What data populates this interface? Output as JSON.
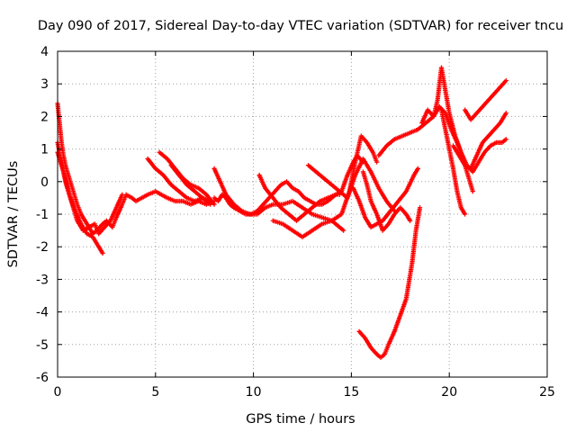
{
  "chart_data": {
    "type": "scatter",
    "title": "Day 090 of 2017, Sidereal Day-to-day VTEC variation (SDTVAR) for receiver tncu",
    "xlabel": "GPS time / hours",
    "ylabel": "SDTVAR / TECUs",
    "xlim": [
      0,
      25
    ],
    "ylim": [
      -6,
      4
    ],
    "xticks": [
      "0",
      "5",
      "10",
      "15",
      "20",
      "25"
    ],
    "yticks": [
      "-6",
      "-5",
      "-4",
      "-3",
      "-2",
      "-1",
      "0",
      "1",
      "2",
      "3",
      "4"
    ],
    "grid": true,
    "legend": "none",
    "marker": "+",
    "color": "#ff0000",
    "series": [
      {
        "x": [
          0,
          0.1,
          0.2,
          0.3,
          0.4,
          0.6,
          0.8,
          1.0,
          1.2,
          1.4,
          1.6,
          1.8,
          2.0,
          2.3,
          2.5,
          2.8,
          3.0,
          3.3,
          3.5,
          3.8,
          4.0,
          4.3,
          4.6,
          5.0,
          5.3,
          5.6,
          6.0,
          6.4,
          6.8,
          7.2,
          7.6,
          8.0
        ],
        "y": [
          2.4,
          1.8,
          1.2,
          0.8,
          0.5,
          0.1,
          -0.3,
          -0.7,
          -1.0,
          -1.2,
          -1.4,
          -1.6,
          -1.5,
          -1.3,
          -1.2,
          -1.4,
          -1.1,
          -0.7,
          -0.4,
          -0.5,
          -0.6,
          -0.5,
          -0.4,
          -0.3,
          -0.4,
          -0.5,
          -0.6,
          -0.6,
          -0.7,
          -0.6,
          -0.7,
          -0.6
        ]
      },
      {
        "x": [
          0,
          0.2,
          0.4,
          0.6,
          0.8,
          1.0,
          1.3,
          1.6,
          1.9,
          2.1,
          2.4,
          2.7,
          3.0,
          3.3
        ],
        "y": [
          1.2,
          0.6,
          0.0,
          -0.4,
          -0.8,
          -1.2,
          -1.5,
          -1.4,
          -1.3,
          -1.6,
          -1.4,
          -1.2,
          -0.8,
          -0.4
        ]
      },
      {
        "x": [
          0,
          0.3,
          0.6,
          0.9,
          1.2,
          1.5,
          1.8,
          2.1,
          2.3
        ],
        "y": [
          0.9,
          0.3,
          -0.4,
          -0.9,
          -1.3,
          -1.6,
          -1.7,
          -2.0,
          -2.2
        ]
      },
      {
        "x": [
          4.6,
          5.0,
          5.4,
          5.8,
          6.2,
          6.6,
          7.0,
          7.4,
          7.8
        ],
        "y": [
          0.7,
          0.4,
          0.2,
          -0.1,
          -0.3,
          -0.5,
          -0.6,
          -0.5,
          -0.7
        ]
      },
      {
        "x": [
          5.2,
          5.6,
          6.0,
          6.4,
          6.8,
          7.2,
          7.6,
          8.0
        ],
        "y": [
          0.9,
          0.7,
          0.4,
          0.1,
          -0.1,
          -0.2,
          -0.4,
          -0.7
        ]
      },
      {
        "x": [
          5.8,
          6.2,
          6.6,
          7.0,
          7.4,
          7.8
        ],
        "y": [
          0.5,
          0.2,
          -0.1,
          -0.3,
          -0.5,
          -0.6
        ]
      },
      {
        "x": [
          8.0,
          8.2,
          8.4,
          8.6,
          8.8,
          9.0,
          9.3,
          9.6,
          9.9,
          10.2,
          10.5,
          10.8,
          11.1,
          11.4,
          11.7,
          12.0,
          12.3,
          12.6,
          12.9,
          13.2,
          13.5,
          13.8,
          14.0,
          14.2,
          14.4
        ],
        "y": [
          -0.5,
          -0.6,
          -0.4,
          -0.5,
          -0.7,
          -0.8,
          -0.9,
          -1.0,
          -1.0,
          -0.9,
          -0.7,
          -0.5,
          -0.3,
          -0.1,
          0.0,
          -0.2,
          -0.3,
          -0.5,
          -0.6,
          -0.7,
          -0.7,
          -0.6,
          -0.5,
          -0.4,
          -0.4
        ]
      },
      {
        "x": [
          8.0,
          8.3,
          8.6,
          9.0,
          9.4,
          9.8,
          10.2,
          10.6,
          11.0,
          11.5,
          12.0,
          12.5,
          13.0,
          13.5,
          14.0,
          14.4,
          14.6
        ],
        "y": [
          0.4,
          0.0,
          -0.4,
          -0.7,
          -0.9,
          -1.0,
          -1.0,
          -0.8,
          -0.7,
          -0.7,
          -0.6,
          -0.8,
          -1.0,
          -1.1,
          -1.2,
          -1.4,
          -1.5
        ]
      },
      {
        "x": [
          10.3,
          10.6,
          11.0,
          11.4,
          11.8,
          12.2,
          12.6,
          13.0,
          13.4,
          13.8,
          14.2,
          14.5,
          14.8,
          15.1,
          15.3,
          15.6
        ],
        "y": [
          0.2,
          -0.2,
          -0.5,
          -0.8,
          -1.0,
          -1.2,
          -1.0,
          -0.8,
          -0.6,
          -0.5,
          -0.4,
          -0.3,
          0.2,
          0.6,
          0.8,
          0.6
        ]
      },
      {
        "x": [
          11.0,
          11.5,
          12.0,
          12.5,
          13.0,
          13.5,
          14.0,
          14.5,
          14.9,
          15.2,
          15.5,
          15.8,
          16.1,
          16.3
        ],
        "y": [
          -1.2,
          -1.3,
          -1.5,
          -1.7,
          -1.5,
          -1.3,
          -1.2,
          -1.0,
          -0.3,
          0.6,
          1.4,
          1.2,
          0.9,
          0.6
        ]
      },
      {
        "x": [
          12.8,
          13.2,
          13.6,
          14.0,
          14.4,
          14.8,
          15.2,
          15.6,
          16.0,
          16.4,
          16.8,
          17.2
        ],
        "y": [
          0.5,
          0.3,
          0.1,
          -0.1,
          -0.3,
          -0.5,
          0.2,
          0.7,
          0.3,
          -0.2,
          -0.6,
          -0.9
        ]
      },
      {
        "x": [
          15.1,
          15.4,
          15.7,
          16.0,
          16.3,
          16.6,
          17.0,
          17.4,
          17.8,
          18.2,
          18.4
        ],
        "y": [
          -0.2,
          -0.6,
          -1.1,
          -1.4,
          -1.3,
          -1.2,
          -0.9,
          -0.6,
          -0.3,
          0.2,
          0.4
        ]
      },
      {
        "x": [
          15.6,
          15.8,
          16.0,
          16.3,
          16.6,
          16.9,
          17.2,
          17.5,
          17.8,
          18.0
        ],
        "y": [
          0.3,
          -0.1,
          -0.6,
          -1.0,
          -1.5,
          -1.3,
          -1.0,
          -0.8,
          -1.0,
          -1.2
        ]
      },
      {
        "x": [
          15.4,
          15.7,
          16.0,
          16.3,
          16.5,
          16.7,
          16.9,
          17.2,
          17.5,
          17.8,
          18.1,
          18.3,
          18.5
        ],
        "y": [
          -4.6,
          -4.8,
          -5.1,
          -5.3,
          -5.4,
          -5.3,
          -5.0,
          -4.6,
          -4.1,
          -3.6,
          -2.5,
          -1.5,
          -0.8
        ]
      },
      {
        "x": [
          16.4,
          16.8,
          17.2,
          17.6,
          18.0,
          18.4,
          18.8,
          19.2,
          19.5,
          19.8,
          20.1,
          20.4,
          20.6,
          20.8,
          21.0,
          21.2
        ],
        "y": [
          0.8,
          1.1,
          1.3,
          1.4,
          1.5,
          1.6,
          1.8,
          2.0,
          2.3,
          2.1,
          1.6,
          1.2,
          0.9,
          0.5,
          0.1,
          -0.3
        ]
      },
      {
        "x": [
          18.6,
          18.9,
          19.2,
          19.4,
          19.6,
          19.8,
          20.0,
          20.3,
          20.6,
          20.9,
          21.2,
          21.5,
          21.8,
          22.1,
          22.4,
          22.7,
          22.9
        ],
        "y": [
          1.8,
          2.2,
          2.0,
          2.5,
          3.5,
          2.8,
          2.1,
          1.4,
          0.9,
          0.5,
          0.3,
          0.6,
          0.9,
          1.1,
          1.2,
          1.2,
          1.3
        ]
      },
      {
        "x": [
          19.6,
          19.8,
          20.0,
          20.2,
          20.4,
          20.6,
          20.8
        ],
        "y": [
          2.2,
          1.6,
          1.0,
          0.4,
          -0.3,
          -0.8,
          -1.0
        ]
      },
      {
        "x": [
          20.2,
          20.5,
          20.8,
          21.1,
          21.4,
          21.7,
          22.0,
          22.3,
          22.6,
          22.9
        ],
        "y": [
          1.1,
          0.8,
          0.5,
          0.4,
          0.8,
          1.2,
          1.4,
          1.6,
          1.8,
          2.1
        ]
      },
      {
        "x": [
          20.8,
          21.1,
          21.4,
          21.7,
          22.0,
          22.3,
          22.6,
          22.9
        ],
        "y": [
          2.2,
          1.9,
          2.1,
          2.3,
          2.5,
          2.7,
          2.9,
          3.1
        ]
      }
    ]
  }
}
